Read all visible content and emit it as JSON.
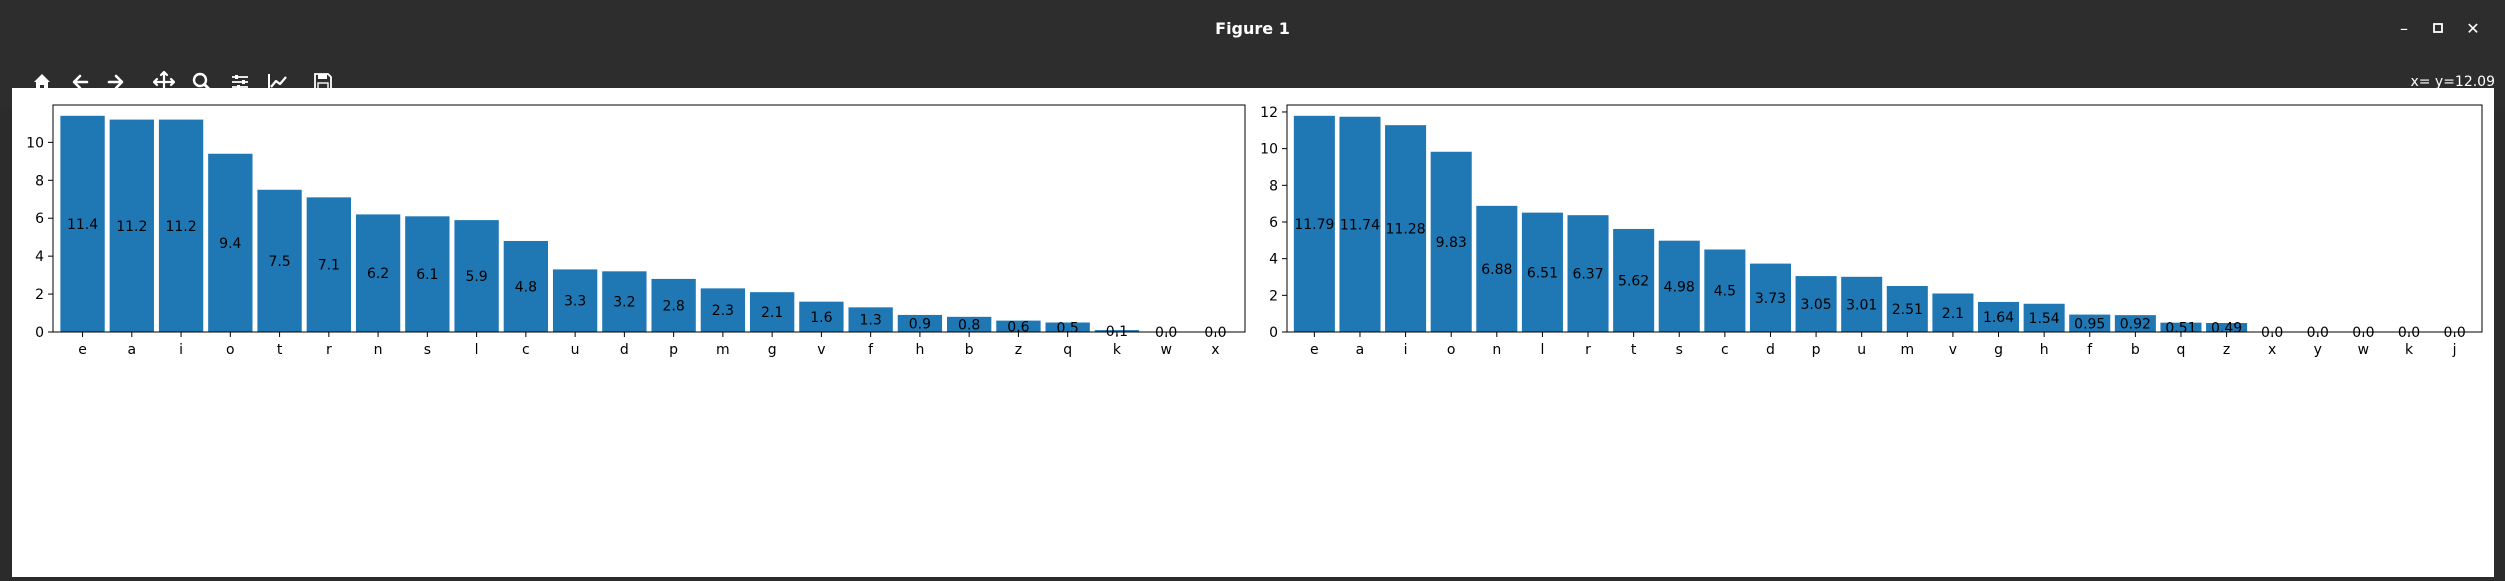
{
  "window": {
    "title": "Figure 1"
  },
  "toolbar": {
    "buttons": [
      {
        "name": "home-icon"
      },
      {
        "name": "back-icon"
      },
      {
        "name": "forward-icon"
      },
      {
        "name": "pan-icon"
      },
      {
        "name": "zoom-icon"
      },
      {
        "name": "configure-subplots-icon"
      },
      {
        "name": "edit-axis-icon"
      },
      {
        "name": "save-icon"
      }
    ],
    "coordinates": "x= y=12.09"
  },
  "chart_data": [
    {
      "type": "bar",
      "title": "",
      "xlabel": "",
      "ylabel": "",
      "color": "#1f77b4",
      "ylim": [
        0,
        11.97
      ],
      "yticks": [
        0,
        2,
        4,
        6,
        8,
        10
      ],
      "categories": [
        "e",
        "a",
        "i",
        "o",
        "t",
        "r",
        "n",
        "s",
        "l",
        "c",
        "u",
        "d",
        "p",
        "m",
        "g",
        "v",
        "f",
        "h",
        "b",
        "z",
        "q",
        "k",
        "w",
        "x"
      ],
      "values": [
        11.4,
        11.2,
        11.2,
        9.4,
        7.5,
        7.1,
        6.2,
        6.1,
        5.9,
        4.8,
        3.3,
        3.2,
        2.8,
        2.3,
        2.1,
        1.6,
        1.3,
        0.9,
        0.8,
        0.6,
        0.5,
        0.1,
        0.0,
        0.0
      ],
      "labels": [
        "11.4",
        "11.2",
        "11.2",
        "9.4",
        "7.5",
        "7.1",
        "6.2",
        "6.1",
        "5.9",
        "4.8",
        "3.3",
        "3.2",
        "2.8",
        "2.3",
        "2.1",
        "1.6",
        "1.3",
        "0.9",
        "0.8",
        "0.6",
        "0.5",
        "0.1",
        "0.0",
        "0.0"
      ]
    },
    {
      "type": "bar",
      "title": "",
      "xlabel": "",
      "ylabel": "",
      "color": "#1f77b4",
      "ylim": [
        0,
        12.38
      ],
      "yticks": [
        0,
        2,
        4,
        6,
        8,
        10,
        12
      ],
      "categories": [
        "e",
        "a",
        "i",
        "o",
        "n",
        "l",
        "r",
        "t",
        "s",
        "c",
        "d",
        "p",
        "u",
        "m",
        "v",
        "g",
        "h",
        "f",
        "b",
        "q",
        "z",
        "x",
        "y",
        "w",
        "k",
        "j"
      ],
      "values": [
        11.79,
        11.74,
        11.28,
        9.83,
        6.88,
        6.51,
        6.37,
        5.62,
        4.98,
        4.5,
        3.73,
        3.05,
        3.01,
        2.51,
        2.1,
        1.64,
        1.54,
        0.95,
        0.92,
        0.51,
        0.49,
        0.0,
        0.0,
        0.0,
        0.0,
        0.0
      ],
      "labels": [
        "11.79",
        "11.74",
        "11.28",
        "9.83",
        "6.88",
        "6.51",
        "6.37",
        "5.62",
        "4.98",
        "4.5",
        "3.73",
        "3.05",
        "3.01",
        "2.51",
        "2.1",
        "1.64",
        "1.54",
        "0.95",
        "0.92",
        "0.51",
        "0.49",
        "0.0",
        "0.0",
        "0.0",
        "0.0",
        "0.0"
      ]
    }
  ]
}
